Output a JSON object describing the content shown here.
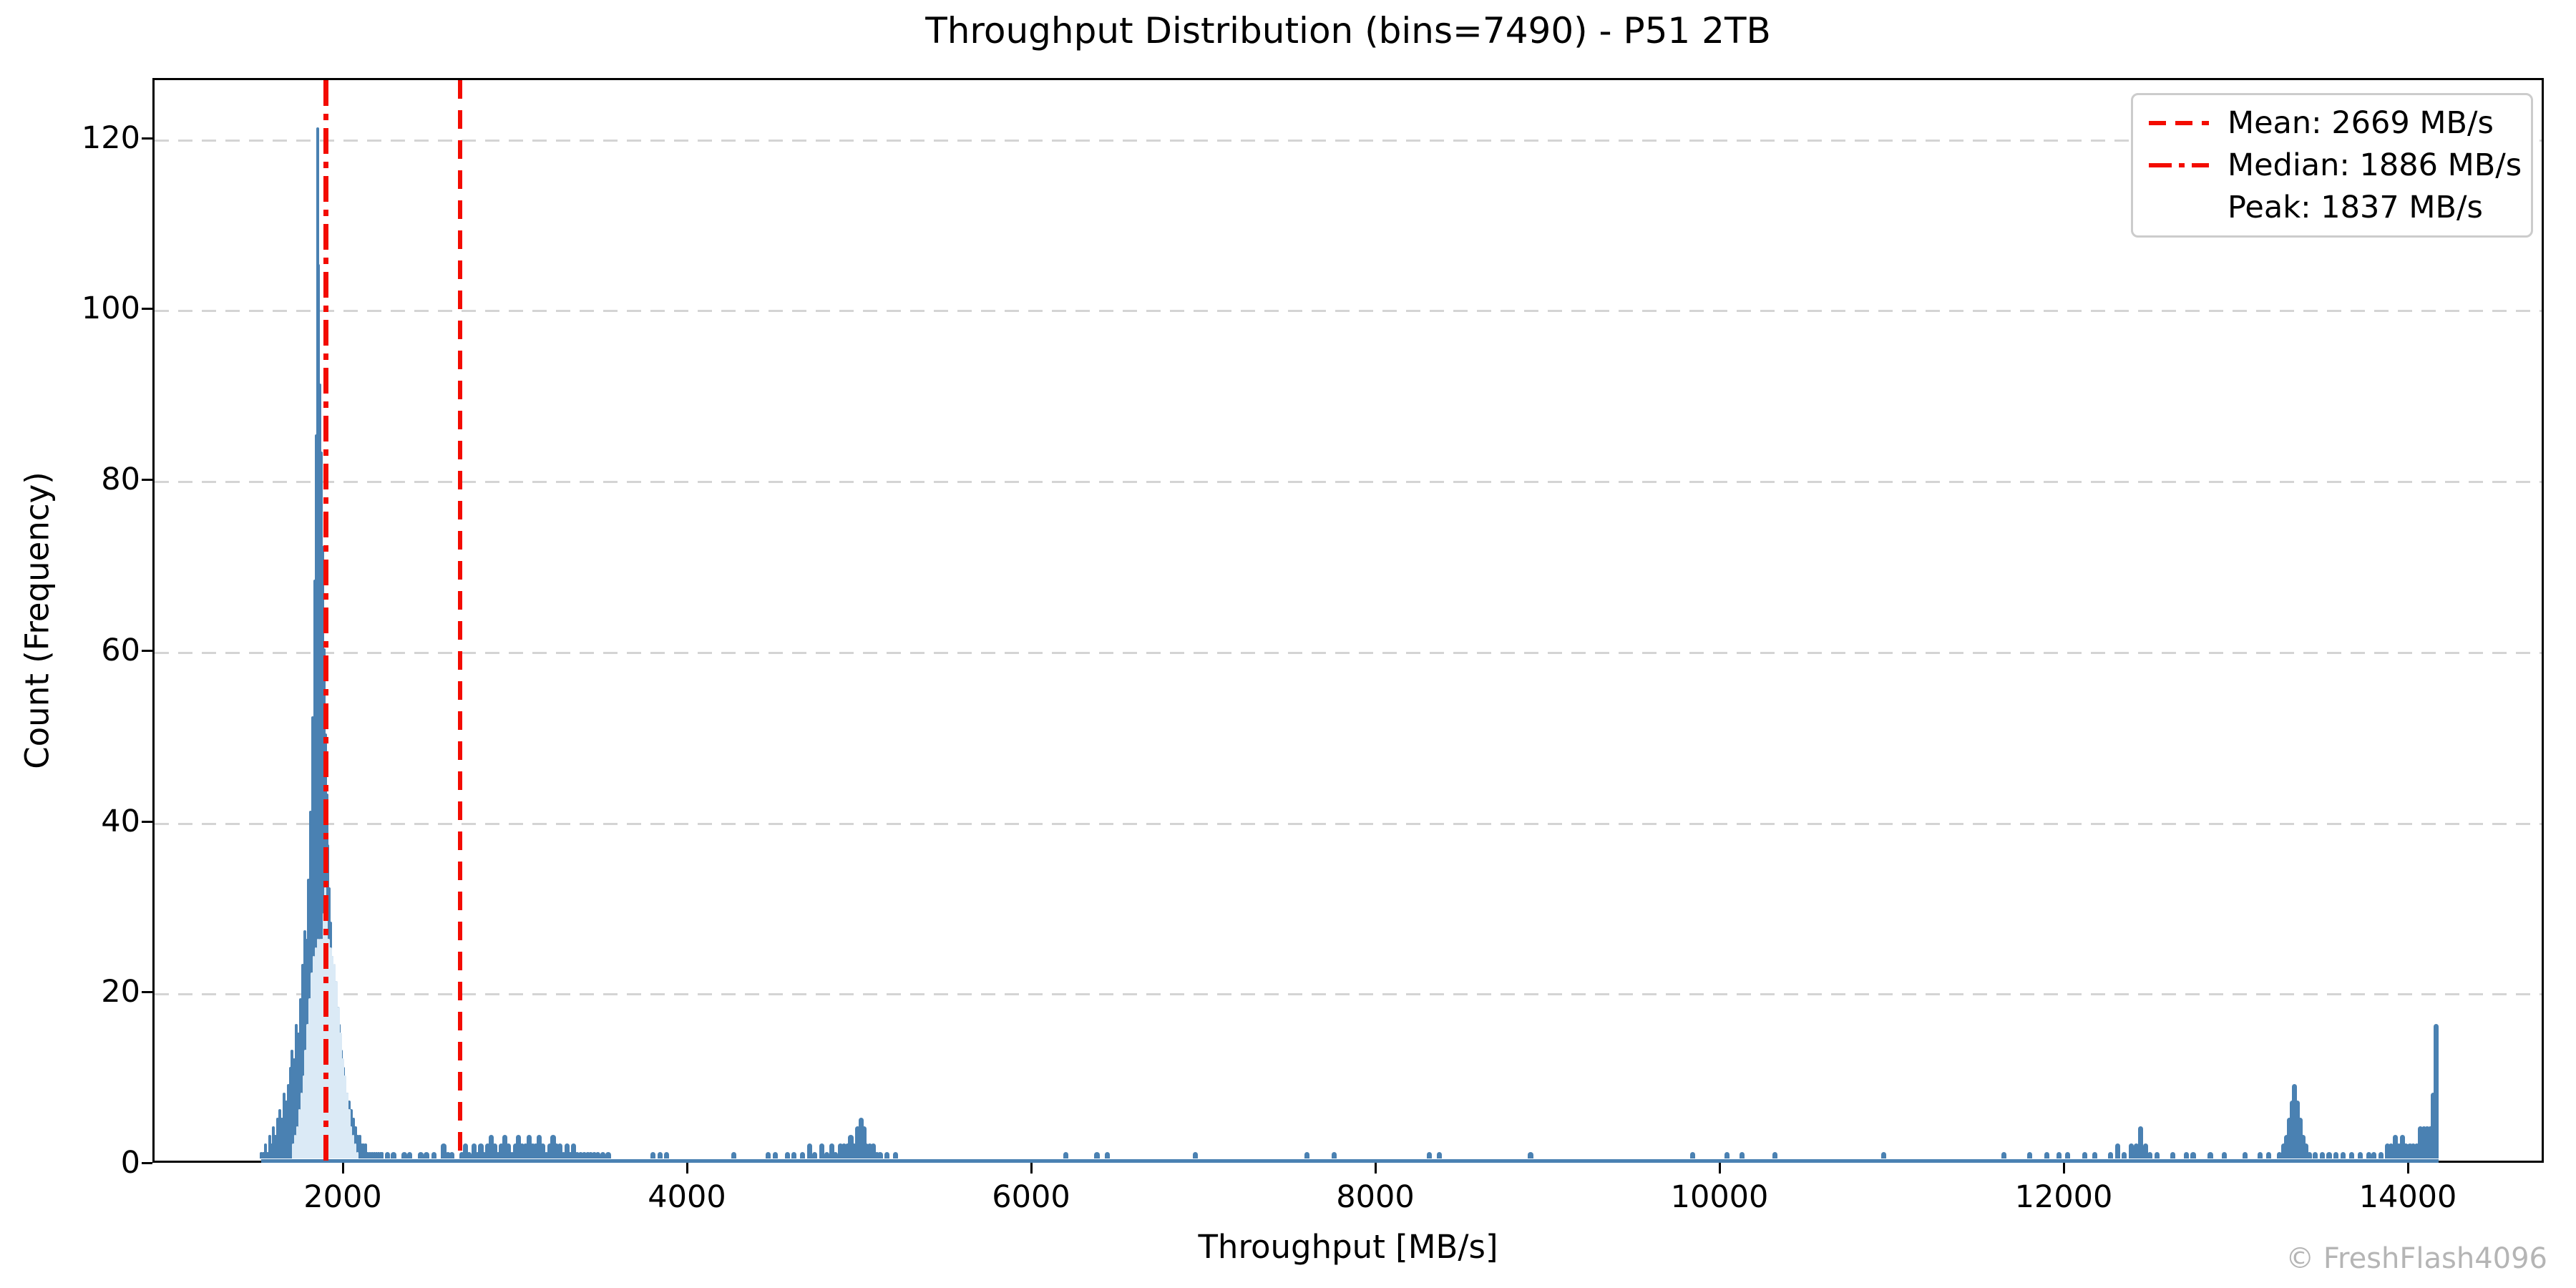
{
  "title": "Throughput Distribution (bins=7490) - P51 2TB",
  "watermark": "© FreshFlash4096",
  "axes": {
    "xlabel": "Throughput [MB/s]",
    "ylabel": "Count (Frequency)"
  },
  "legend": {
    "items": [
      {
        "label": "Mean: 2669 MB/s",
        "line_style": "dashed",
        "color": "#ff0000"
      },
      {
        "label": "Median: 1886 MB/s",
        "line_style": "dashdot",
        "color": "#ff0000"
      },
      {
        "label": "Peak: 1837 MB/s",
        "line_style": "none",
        "color": "none"
      }
    ]
  },
  "stats": {
    "mean_mbs": 2669,
    "median_mbs": 1886,
    "peak_mbs": 1837,
    "bins": 7490,
    "peak_count": 121
  },
  "chart_data": {
    "type": "bar",
    "subtype": "histogram",
    "title": "Throughput Distribution (bins=7490) - P51 2TB",
    "xlabel": "Throughput [MB/s]",
    "ylabel": "Count (Frequency)",
    "xlim": [
      894,
      14790
    ],
    "ylim": [
      0,
      127
    ],
    "x_ticks": [
      2000,
      4000,
      6000,
      8000,
      10000,
      12000,
      14000
    ],
    "y_ticks": [
      0,
      20,
      40,
      60,
      80,
      100,
      120
    ],
    "grid": "horizontal-dashed",
    "legend_position": "upper right",
    "colors": {
      "bar_edge": "#4a81b2",
      "bar_face": "#dbeaf6",
      "stat_lines": "#f30c00",
      "gridline": "#d4d4d4",
      "watermark": "#b5b5b5"
    },
    "mean_line": {
      "x": 2669,
      "style": "dashed",
      "color": "#f30c00"
    },
    "median_line": {
      "x": 1886,
      "style": "dashdot",
      "color": "#f30c00"
    },
    "data_range": [
      1514,
      14165
    ],
    "series": [
      {
        "name": "main-peak-outline",
        "role": "dark_bars",
        "bin_width": 13,
        "points": [
          [
            1514,
            1
          ],
          [
            1526,
            1
          ],
          [
            1538,
            2
          ],
          [
            1550,
            1
          ],
          [
            1562,
            3
          ],
          [
            1574,
            2
          ],
          [
            1586,
            4
          ],
          [
            1598,
            3
          ],
          [
            1610,
            5
          ],
          [
            1622,
            6
          ],
          [
            1634,
            5
          ],
          [
            1646,
            8
          ],
          [
            1658,
            7
          ],
          [
            1670,
            9
          ],
          [
            1682,
            11
          ],
          [
            1694,
            13
          ],
          [
            1706,
            12
          ],
          [
            1718,
            16
          ],
          [
            1730,
            15
          ],
          [
            1742,
            19
          ],
          [
            1754,
            23
          ],
          [
            1766,
            27
          ],
          [
            1778,
            26
          ],
          [
            1790,
            33
          ],
          [
            1802,
            41
          ],
          [
            1814,
            52
          ],
          [
            1826,
            68
          ],
          [
            1833,
            85
          ],
          [
            1840,
            121
          ],
          [
            1847,
            105
          ],
          [
            1854,
            91
          ],
          [
            1862,
            83
          ],
          [
            1870,
            72
          ],
          [
            1878,
            60
          ],
          [
            1886,
            50
          ],
          [
            1894,
            43
          ],
          [
            1902,
            37
          ],
          [
            1910,
            32
          ],
          [
            1918,
            28
          ],
          [
            1926,
            24
          ],
          [
            1934,
            22
          ],
          [
            1942,
            21
          ],
          [
            1950,
            20
          ],
          [
            1958,
            18
          ],
          [
            1966,
            16
          ],
          [
            1978,
            13
          ],
          [
            1990,
            11
          ],
          [
            2002,
            9
          ],
          [
            2014,
            8
          ],
          [
            2026,
            7
          ],
          [
            2038,
            6
          ],
          [
            2050,
            5
          ],
          [
            2062,
            4
          ],
          [
            2074,
            3
          ],
          [
            2086,
            3
          ],
          [
            2098,
            2
          ],
          [
            2110,
            2
          ],
          [
            2122,
            2
          ],
          [
            2134,
            1
          ],
          [
            2146,
            1
          ],
          [
            2158,
            1
          ],
          [
            2170,
            1
          ],
          [
            2182,
            1
          ],
          [
            2194,
            1
          ],
          [
            2206,
            1
          ],
          [
            2218,
            1
          ]
        ]
      },
      {
        "name": "main-peak-fill",
        "role": "light_bars",
        "bin_width": 13,
        "points": [
          [
            1700,
            2
          ],
          [
            1712,
            3
          ],
          [
            1724,
            4
          ],
          [
            1736,
            6
          ],
          [
            1748,
            8
          ],
          [
            1760,
            10
          ],
          [
            1772,
            13
          ],
          [
            1784,
            16
          ],
          [
            1796,
            19
          ],
          [
            1808,
            22
          ],
          [
            1820,
            24
          ],
          [
            1832,
            25
          ],
          [
            1844,
            26
          ],
          [
            1856,
            26
          ],
          [
            1868,
            26
          ],
          [
            1877,
            29
          ],
          [
            1886,
            32
          ],
          [
            1895,
            29
          ],
          [
            1904,
            26
          ],
          [
            1916,
            25
          ],
          [
            1928,
            24
          ],
          [
            1940,
            23
          ],
          [
            1952,
            21
          ],
          [
            1964,
            18
          ],
          [
            1976,
            15
          ],
          [
            1988,
            12
          ],
          [
            2000,
            10
          ],
          [
            2012,
            8
          ],
          [
            2024,
            6
          ],
          [
            2036,
            4
          ],
          [
            2048,
            3
          ],
          [
            2060,
            2
          ],
          [
            2072,
            1
          ]
        ]
      },
      {
        "name": "scattered-bins",
        "role": "dark_bars",
        "bin_width": 28,
        "points": [
          [
            2246,
            1
          ],
          [
            2283,
            1
          ],
          [
            2345,
            1
          ],
          [
            2378,
            1
          ],
          [
            2441,
            1
          ],
          [
            2474,
            1
          ],
          [
            2516,
            1
          ],
          [
            2574,
            2
          ],
          [
            2599,
            1
          ],
          [
            2620,
            1
          ],
          [
            2680,
            1
          ],
          [
            2700,
            2
          ],
          [
            2720,
            1
          ],
          [
            2750,
            2
          ],
          [
            2770,
            1
          ],
          [
            2790,
            2
          ],
          [
            2810,
            1
          ],
          [
            2830,
            2
          ],
          [
            2850,
            3
          ],
          [
            2870,
            2
          ],
          [
            2890,
            1
          ],
          [
            2910,
            2
          ],
          [
            2930,
            3
          ],
          [
            2950,
            2
          ],
          [
            2970,
            1
          ],
          [
            2990,
            2
          ],
          [
            3010,
            3
          ],
          [
            3030,
            2
          ],
          [
            3050,
            2
          ],
          [
            3070,
            3
          ],
          [
            3090,
            2
          ],
          [
            3110,
            2
          ],
          [
            3130,
            3
          ],
          [
            3150,
            2
          ],
          [
            3170,
            1
          ],
          [
            3190,
            2
          ],
          [
            3210,
            3
          ],
          [
            3230,
            2
          ],
          [
            3250,
            2
          ],
          [
            3270,
            1
          ],
          [
            3290,
            2
          ],
          [
            3310,
            1
          ],
          [
            3330,
            2
          ],
          [
            3350,
            1
          ],
          [
            3370,
            1
          ],
          [
            3390,
            1
          ],
          [
            3410,
            1
          ],
          [
            3430,
            1
          ],
          [
            3450,
            1
          ],
          [
            3470,
            1
          ],
          [
            3500,
            1
          ],
          [
            3530,
            1
          ],
          [
            3790,
            1
          ],
          [
            3830,
            1
          ],
          [
            3870,
            1
          ],
          [
            4260,
            1
          ],
          [
            4460,
            1
          ],
          [
            4500,
            1
          ],
          [
            4570,
            1
          ],
          [
            4610,
            1
          ],
          [
            4660,
            1
          ],
          [
            4700,
            2
          ],
          [
            4730,
            1
          ],
          [
            4770,
            2
          ],
          [
            4800,
            1
          ],
          [
            4830,
            2
          ],
          [
            4850,
            1
          ],
          [
            4880,
            2
          ],
          [
            4900,
            2
          ],
          [
            4920,
            2
          ],
          [
            4940,
            3
          ],
          [
            4960,
            2
          ],
          [
            4980,
            4
          ],
          [
            5000,
            5
          ],
          [
            5015,
            4
          ],
          [
            5030,
            2
          ],
          [
            5050,
            2
          ],
          [
            5070,
            2
          ],
          [
            5090,
            1
          ],
          [
            5110,
            1
          ],
          [
            5150,
            1
          ],
          [
            5200,
            1
          ],
          [
            6190,
            1
          ],
          [
            6370,
            1
          ],
          [
            6430,
            1
          ],
          [
            6940,
            1
          ],
          [
            7590,
            1
          ],
          [
            7750,
            1
          ],
          [
            8300,
            1
          ],
          [
            8360,
            1
          ],
          [
            8890,
            1
          ],
          [
            9830,
            1
          ],
          [
            10030,
            1
          ],
          [
            10120,
            1
          ],
          [
            10310,
            1
          ],
          [
            10940,
            1
          ],
          [
            11640,
            1
          ],
          [
            11790,
            1
          ],
          [
            11890,
            1
          ],
          [
            11960,
            1
          ],
          [
            12010,
            1
          ],
          [
            12110,
            1
          ],
          [
            12170,
            1
          ],
          [
            12260,
            1
          ],
          [
            12300,
            2
          ],
          [
            12340,
            1
          ],
          [
            12380,
            2
          ],
          [
            12410,
            2
          ],
          [
            12436,
            4
          ],
          [
            12465,
            2
          ],
          [
            12490,
            1
          ],
          [
            12530,
            1
          ],
          [
            12620,
            1
          ],
          [
            12700,
            1
          ],
          [
            12740,
            1
          ],
          [
            12840,
            1
          ],
          [
            12920,
            1
          ],
          [
            13040,
            1
          ],
          [
            13130,
            1
          ],
          [
            13180,
            1
          ],
          [
            13240,
            1
          ],
          [
            13265,
            2
          ],
          [
            13285,
            3
          ],
          [
            13300,
            5
          ],
          [
            13315,
            7
          ],
          [
            13330,
            9
          ],
          [
            13345,
            7
          ],
          [
            13360,
            5
          ],
          [
            13378,
            3
          ],
          [
            13395,
            2
          ],
          [
            13415,
            1
          ],
          [
            13450,
            1
          ],
          [
            13490,
            1
          ],
          [
            13530,
            1
          ],
          [
            13570,
            1
          ],
          [
            13610,
            1
          ],
          [
            13660,
            1
          ],
          [
            13710,
            1
          ],
          [
            13760,
            1
          ],
          [
            13790,
            1
          ],
          [
            13830,
            1
          ],
          [
            13870,
            2
          ],
          [
            13890,
            2
          ],
          [
            13915,
            3
          ],
          [
            13935,
            2
          ],
          [
            13955,
            3
          ],
          [
            13975,
            2
          ],
          [
            14000,
            2
          ],
          [
            14020,
            2
          ],
          [
            14040,
            2
          ],
          [
            14060,
            4
          ],
          [
            14080,
            4
          ],
          [
            14100,
            4
          ],
          [
            14120,
            4
          ],
          [
            14135,
            8
          ],
          [
            14150,
            16
          ]
        ]
      }
    ]
  }
}
